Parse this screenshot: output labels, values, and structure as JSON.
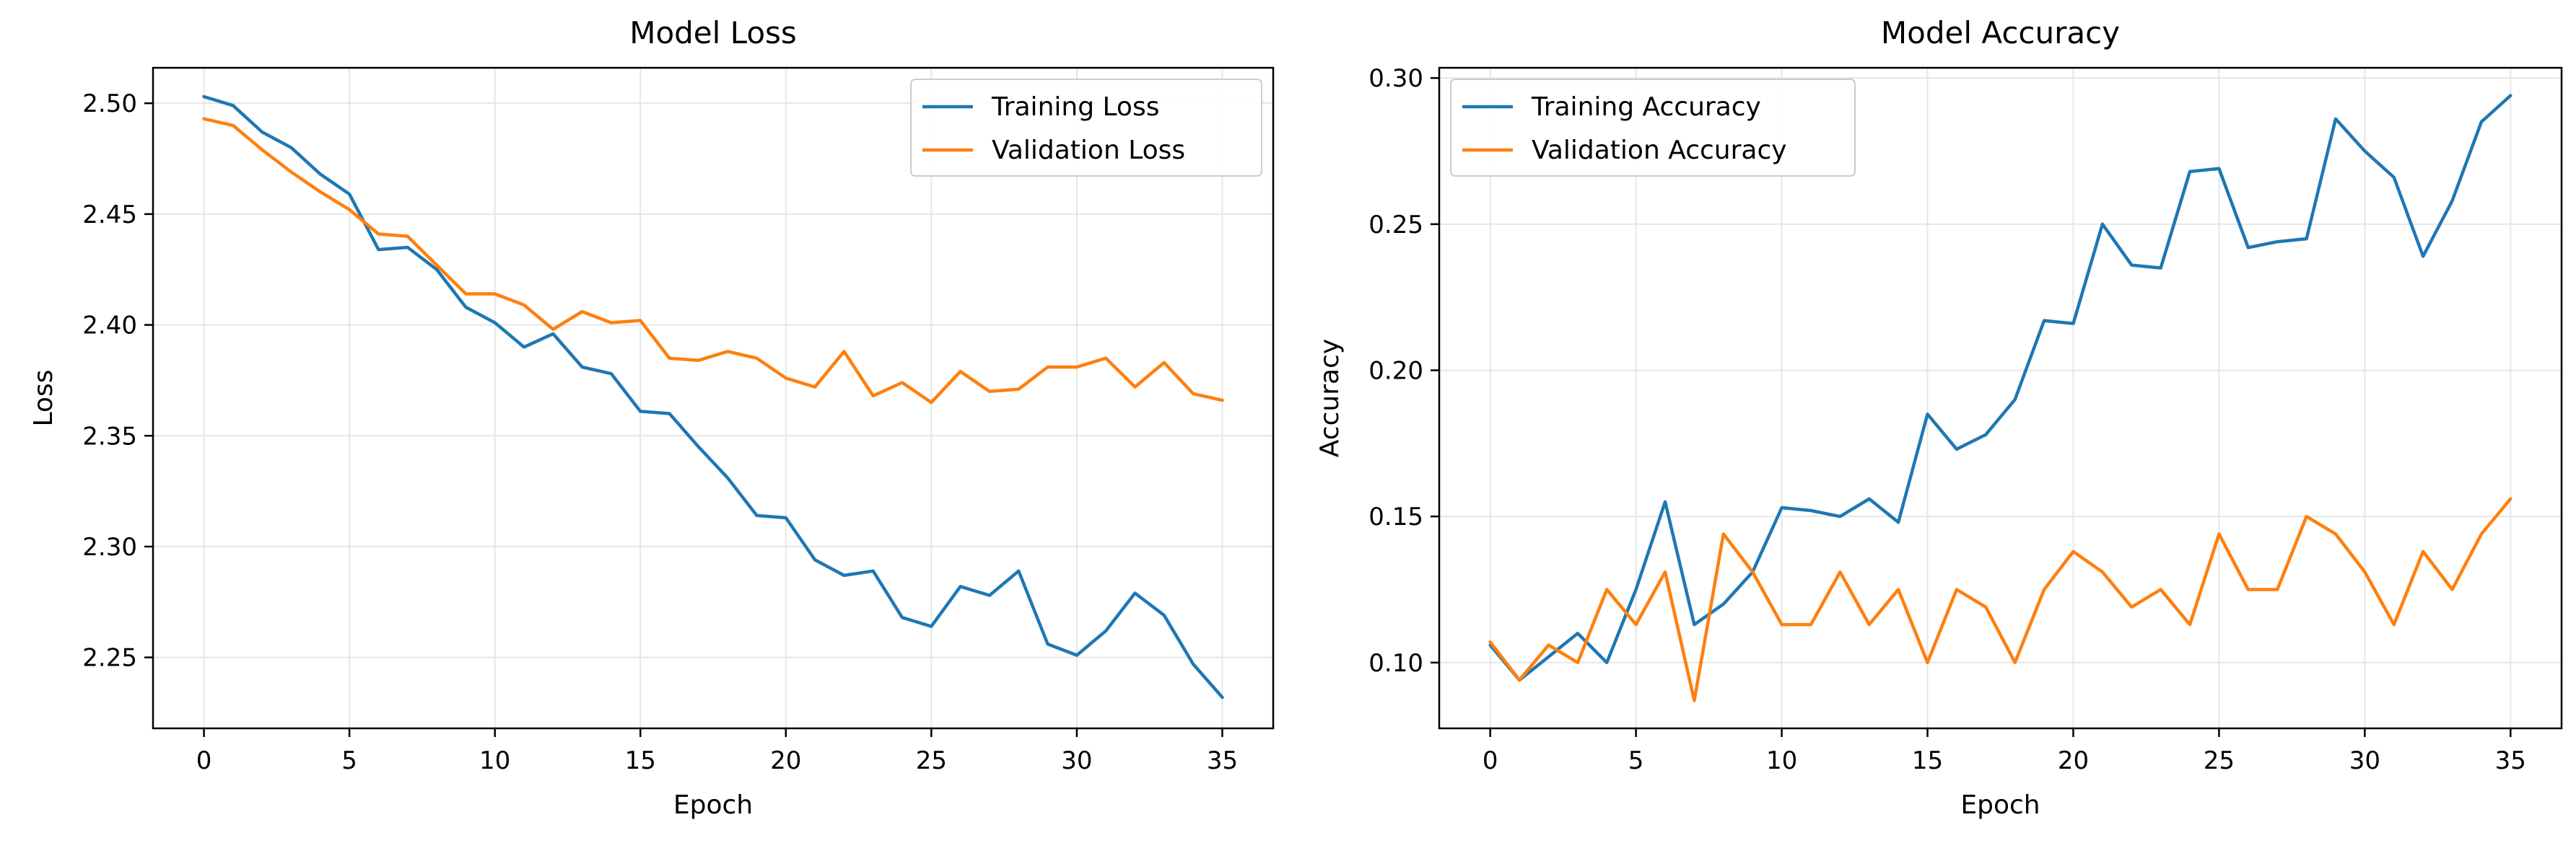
{
  "colors": {
    "training": "#1f77b4",
    "validation": "#ff7f0e"
  },
  "chart_data": [
    {
      "type": "line",
      "title": "Model Loss",
      "xlabel": "Epoch",
      "ylabel": "Loss",
      "xlim": [
        -1.75,
        36.75
      ],
      "ylim": [
        2.218,
        2.516
      ],
      "xticks": [
        0,
        5,
        10,
        15,
        20,
        25,
        30,
        35
      ],
      "yticks": [
        2.25,
        2.3,
        2.35,
        2.4,
        2.45,
        2.5
      ],
      "ytick_labels": [
        "2.25",
        "2.30",
        "2.35",
        "2.40",
        "2.45",
        "2.50"
      ],
      "grid": true,
      "legend_position": "top-right",
      "x": [
        0,
        1,
        2,
        3,
        4,
        5,
        6,
        7,
        8,
        9,
        10,
        11,
        12,
        13,
        14,
        15,
        16,
        17,
        18,
        19,
        20,
        21,
        22,
        23,
        24,
        25,
        26,
        27,
        28,
        29,
        30,
        31,
        32,
        33,
        34,
        35
      ],
      "series": [
        {
          "name": "Training Loss",
          "color_key": "training",
          "values": [
            2.503,
            2.499,
            2.487,
            2.48,
            2.468,
            2.459,
            2.434,
            2.435,
            2.425,
            2.408,
            2.401,
            2.39,
            2.396,
            2.381,
            2.378,
            2.361,
            2.36,
            2.345,
            2.331,
            2.314,
            2.313,
            2.294,
            2.287,
            2.289,
            2.268,
            2.264,
            2.282,
            2.278,
            2.289,
            2.256,
            2.251,
            2.262,
            2.279,
            2.269,
            2.247,
            2.232
          ]
        },
        {
          "name": "Validation Loss",
          "color_key": "validation",
          "values": [
            2.493,
            2.49,
            2.479,
            2.469,
            2.46,
            2.452,
            2.441,
            2.44,
            2.427,
            2.414,
            2.414,
            2.409,
            2.398,
            2.406,
            2.401,
            2.402,
            2.385,
            2.384,
            2.388,
            2.385,
            2.376,
            2.372,
            2.388,
            2.368,
            2.374,
            2.365,
            2.379,
            2.37,
            2.371,
            2.381,
            2.381,
            2.385,
            2.372,
            2.383,
            2.369,
            2.366
          ]
        }
      ]
    },
    {
      "type": "line",
      "title": "Model Accuracy",
      "xlabel": "Epoch",
      "ylabel": "Accuracy",
      "xlim": [
        -1.75,
        36.75
      ],
      "ylim": [
        0.0775,
        0.3035
      ],
      "xticks": [
        0,
        5,
        10,
        15,
        20,
        25,
        30,
        35
      ],
      "yticks": [
        0.1,
        0.15,
        0.2,
        0.25,
        0.3
      ],
      "ytick_labels": [
        "0.10",
        "0.15",
        "0.20",
        "0.25",
        "0.30"
      ],
      "grid": true,
      "legend_position": "top-left",
      "x": [
        0,
        1,
        2,
        3,
        4,
        5,
        6,
        7,
        8,
        9,
        10,
        11,
        12,
        13,
        14,
        15,
        16,
        17,
        18,
        19,
        20,
        21,
        22,
        23,
        24,
        25,
        26,
        27,
        28,
        29,
        30,
        31,
        32,
        33,
        34,
        35
      ],
      "series": [
        {
          "name": "Training Accuracy",
          "color_key": "training",
          "values": [
            0.106,
            0.094,
            0.102,
            0.11,
            0.1,
            0.125,
            0.155,
            0.113,
            0.12,
            0.131,
            0.153,
            0.152,
            0.15,
            0.156,
            0.148,
            0.185,
            0.173,
            0.178,
            0.19,
            0.217,
            0.216,
            0.25,
            0.236,
            0.235,
            0.268,
            0.269,
            0.242,
            0.244,
            0.245,
            0.286,
            0.275,
            0.266,
            0.239,
            0.258,
            0.285,
            0.294
          ]
        },
        {
          "name": "Validation Accuracy",
          "color_key": "validation",
          "values": [
            0.107,
            0.094,
            0.106,
            0.1,
            0.125,
            0.113,
            0.131,
            0.087,
            0.144,
            0.131,
            0.113,
            0.113,
            0.131,
            0.113,
            0.125,
            0.1,
            0.125,
            0.119,
            0.1,
            0.125,
            0.138,
            0.131,
            0.119,
            0.125,
            0.113,
            0.144,
            0.125,
            0.125,
            0.15,
            0.144,
            0.131,
            0.113,
            0.138,
            0.125,
            0.144,
            0.156
          ]
        }
      ]
    }
  ]
}
